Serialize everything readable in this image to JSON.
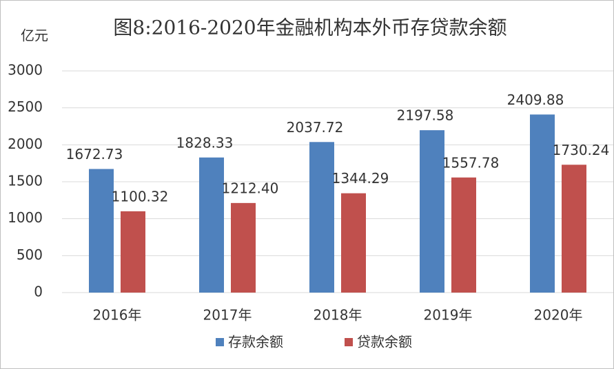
{
  "chart_data": {
    "type": "bar",
    "title": "图8:2016-2020年金融机构本外币存贷款余额",
    "y_axis_label": "亿元",
    "categories": [
      "2016年",
      "2017年",
      "2018年",
      "2019年",
      "2020年"
    ],
    "series": [
      {
        "name": "存款余额",
        "color": "#4f81bd",
        "values": [
          1672.73,
          1828.33,
          2037.72,
          2197.58,
          2409.88
        ],
        "value_labels": [
          "1672.73",
          "1828.33",
          "2037.72",
          "2197.58",
          "2409.88"
        ]
      },
      {
        "name": "贷款余额",
        "color": "#c0504d",
        "values": [
          1100.32,
          1212.4,
          1344.29,
          1557.78,
          1730.24
        ],
        "value_labels": [
          "1100.32",
          "1212.40",
          "1344.29",
          "1557.78",
          "1730.24"
        ]
      }
    ],
    "ylim": [
      0,
      3000
    ],
    "yticks": [
      0,
      500,
      1000,
      1500,
      2000,
      2500,
      3000
    ],
    "grid": true,
    "legend": "bottom"
  }
}
